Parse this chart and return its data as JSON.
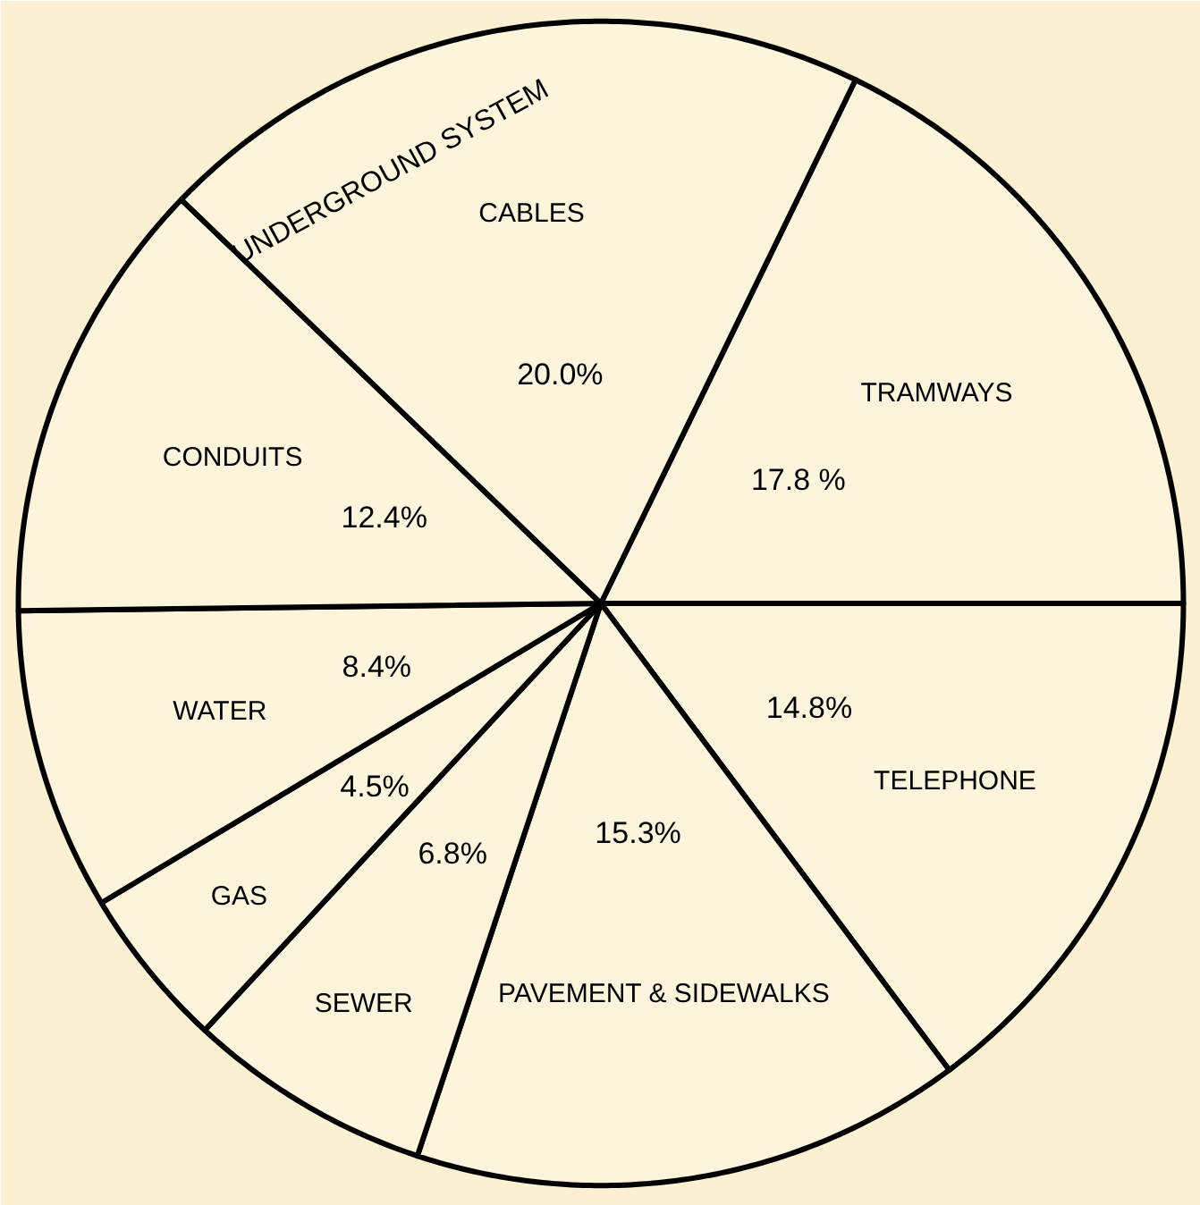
{
  "chart_data": {
    "type": "pie",
    "categories": [
      "TRAMWAYS",
      "TELEPHONE",
      "PAVEMENT & SIDEWALKS",
      "SEWER",
      "GAS",
      "WATER",
      "CONDUITS",
      "CABLES"
    ],
    "values": [
      17.8,
      14.8,
      15.3,
      6.8,
      4.5,
      8.4,
      12.4,
      20.0
    ],
    "value_labels": [
      "17.8 %",
      "14.8%",
      "15.3%",
      "6.8%",
      "4.5%",
      "8.4%",
      "12.4%",
      "20.0%"
    ],
    "colors": [
      "#fdf4dc",
      "#fdf4dc",
      "#fdf4dc",
      "#fdf4dc",
      "#fdf4dc",
      "#fdf4dc",
      "#fdf4dc",
      "#fdf4dc"
    ],
    "annotations": [
      "UNDERGROUND SYSTEM"
    ]
  }
}
